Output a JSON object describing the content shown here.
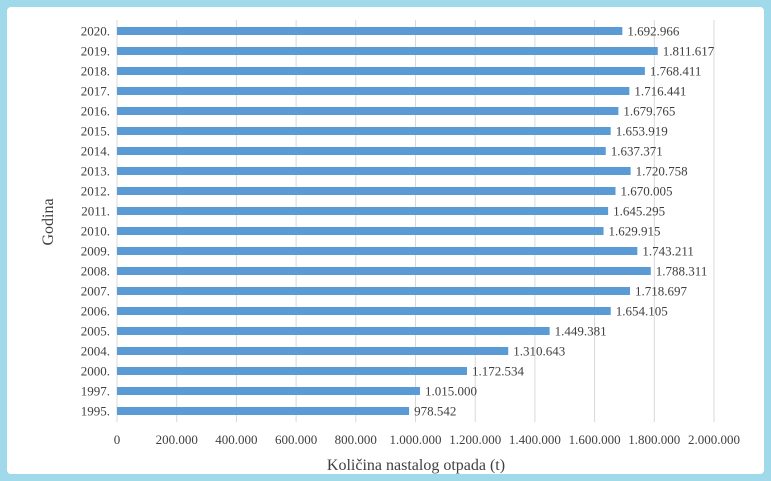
{
  "chart_data": {
    "type": "bar",
    "orientation": "horizontal",
    "categories": [
      "2020.",
      "2019.",
      "2018.",
      "2017.",
      "2016.",
      "2015.",
      "2014.",
      "2013.",
      "2012.",
      "2011.",
      "2010.",
      "2009.",
      "2008.",
      "2007.",
      "2006.",
      "2005.",
      "2004.",
      "2000.",
      "1997.",
      "1995."
    ],
    "values": [
      1692966,
      1811617,
      1768411,
      1716441,
      1679765,
      1653919,
      1637371,
      1720758,
      1670005,
      1645295,
      1629915,
      1743211,
      1788311,
      1718697,
      1654105,
      1449381,
      1310643,
      1172534,
      1015000,
      978542
    ],
    "data_labels": [
      "1.692.966",
      "1.811.617",
      "1.768.411",
      "1.716.441",
      "1.679.765",
      "1.653.919",
      "1.637.371",
      "1.720.758",
      "1.670.005",
      "1.645.295",
      "1.629.915",
      "1.743.211",
      "1.788.311",
      "1.718.697",
      "1.654.105",
      "1.449.381",
      "1.310.643",
      "1.172.534",
      "1.015.000",
      "978.542"
    ],
    "xlabel": "Količina nastalog otpada (t)",
    "ylabel": "Godina",
    "xlim": [
      0,
      2000000
    ],
    "x_ticks": [
      0,
      200000,
      400000,
      600000,
      800000,
      1000000,
      1200000,
      1400000,
      1600000,
      1800000,
      2000000
    ],
    "x_tick_labels": [
      "0",
      "200.000",
      "400.000",
      "600.000",
      "800.000",
      "1.000.000",
      "1.200.000",
      "1.400.000",
      "1.600.000",
      "1.800.000",
      "2.000.000"
    ],
    "grid": "vertical",
    "bar_color": "#5b9bd5",
    "frame_color": "#9fd9ea"
  }
}
